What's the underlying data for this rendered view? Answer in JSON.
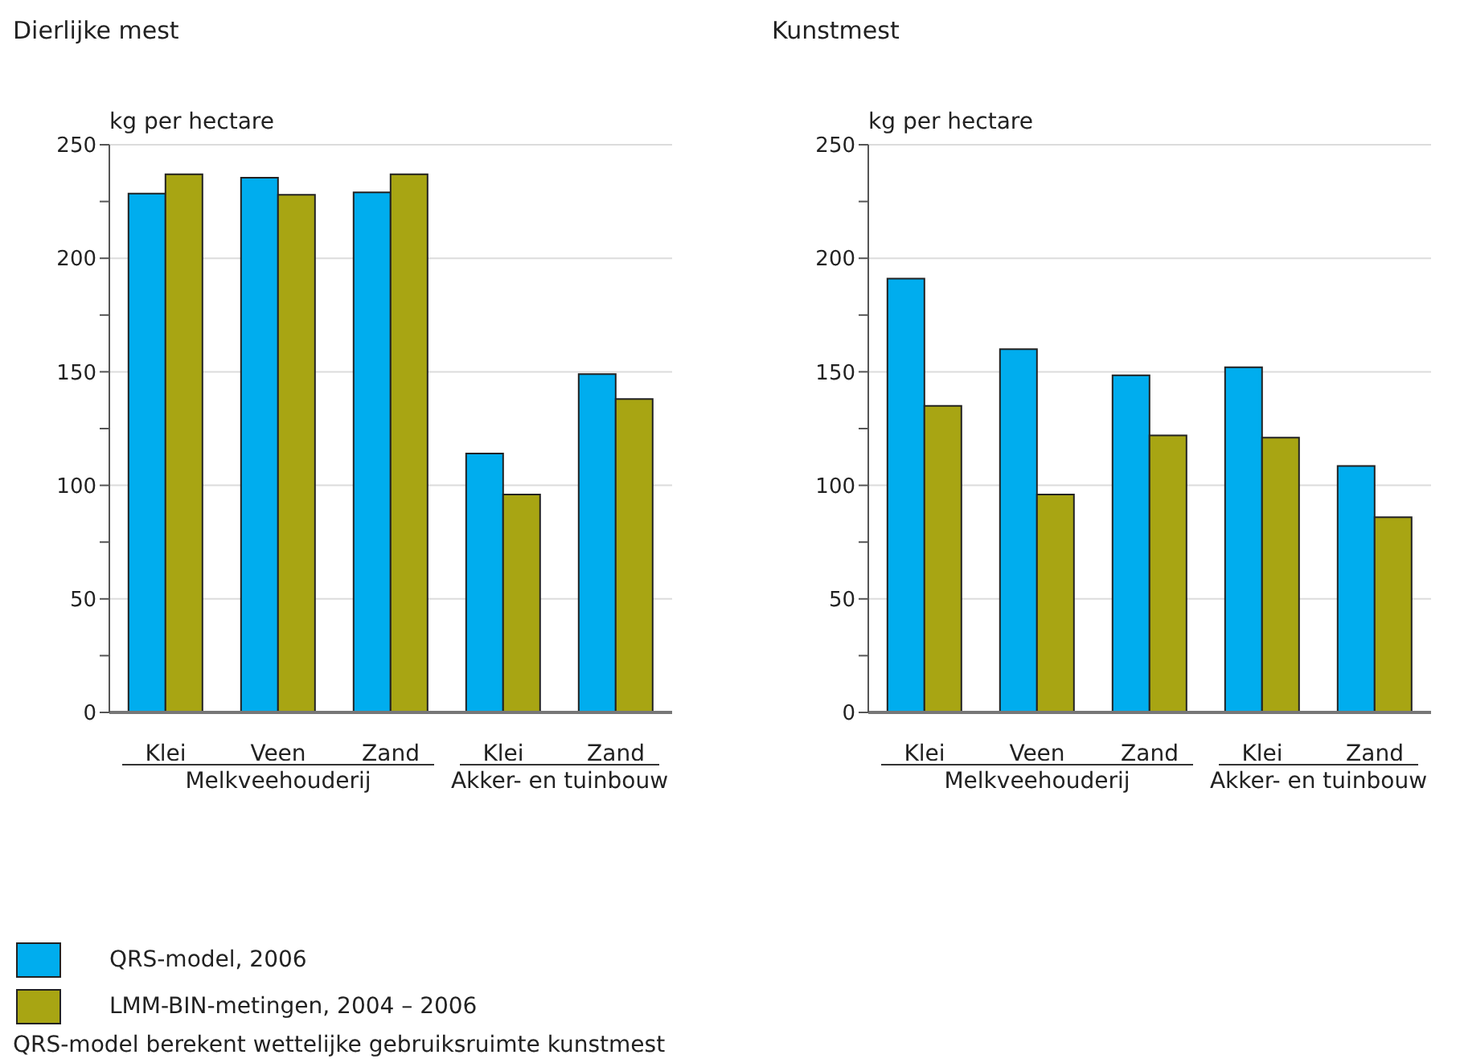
{
  "chart_data": [
    {
      "type": "bar",
      "title": "Dierlijke mest",
      "ylabel": "kg per hectare",
      "categories": [
        "Klei",
        "Veen",
        "Zand",
        "Klei",
        "Zand"
      ],
      "series": [
        {
          "name": "QRS-model, 2006",
          "color": "#00adee",
          "values": [
            228.5,
            235.5,
            229,
            114,
            149
          ]
        },
        {
          "name": "LMM-BIN-metingen, 2004 – 2006",
          "color": "#a8a513",
          "values": [
            237,
            228,
            237,
            96,
            138
          ]
        }
      ],
      "ylim": [
        0,
        250
      ],
      "yticks": [
        0,
        {
          "value": 25,
          "label": null
        },
        50,
        {
          "value": 75,
          "label": null
        },
        100,
        {
          "value": 125,
          "label": null
        },
        150,
        {
          "value": 175,
          "label": null
        },
        200,
        {
          "value": 225,
          "label": null
        },
        250
      ],
      "grid": "y",
      "legend": "bottom",
      "annotations": [
        "Melkveehouderij",
        "Akker- en tuinbouw",
        "QRS-model berekent wettelijke gebruiksruimte kunstmest"
      ]
    },
    {
      "type": "bar",
      "title": "Kunstmest",
      "ylabel": "kg per hectare",
      "categories": [
        "Klei",
        "Veen",
        "Zand",
        "Klei",
        "Zand"
      ],
      "series": [
        {
          "color": "#00adee",
          "values": [
            191,
            160,
            148.5,
            152,
            108.5
          ]
        },
        {
          "color": "#a8a513",
          "values": [
            135,
            96,
            122,
            121,
            86
          ]
        }
      ],
      "ylim": [
        0,
        250
      ],
      "yticks": [
        0,
        {
          "value": 25,
          "label": null
        },
        50,
        {
          "value": 75,
          "label": null
        },
        100,
        {
          "value": 125,
          "label": null
        },
        150,
        {
          "value": 175,
          "label": null
        },
        200,
        {
          "value": 225,
          "label": null
        },
        250
      ],
      "grid": "y",
      "annotations": [
        "Melkveehouderij",
        "Akker- en tuinbouw"
      ]
    }
  ]
}
